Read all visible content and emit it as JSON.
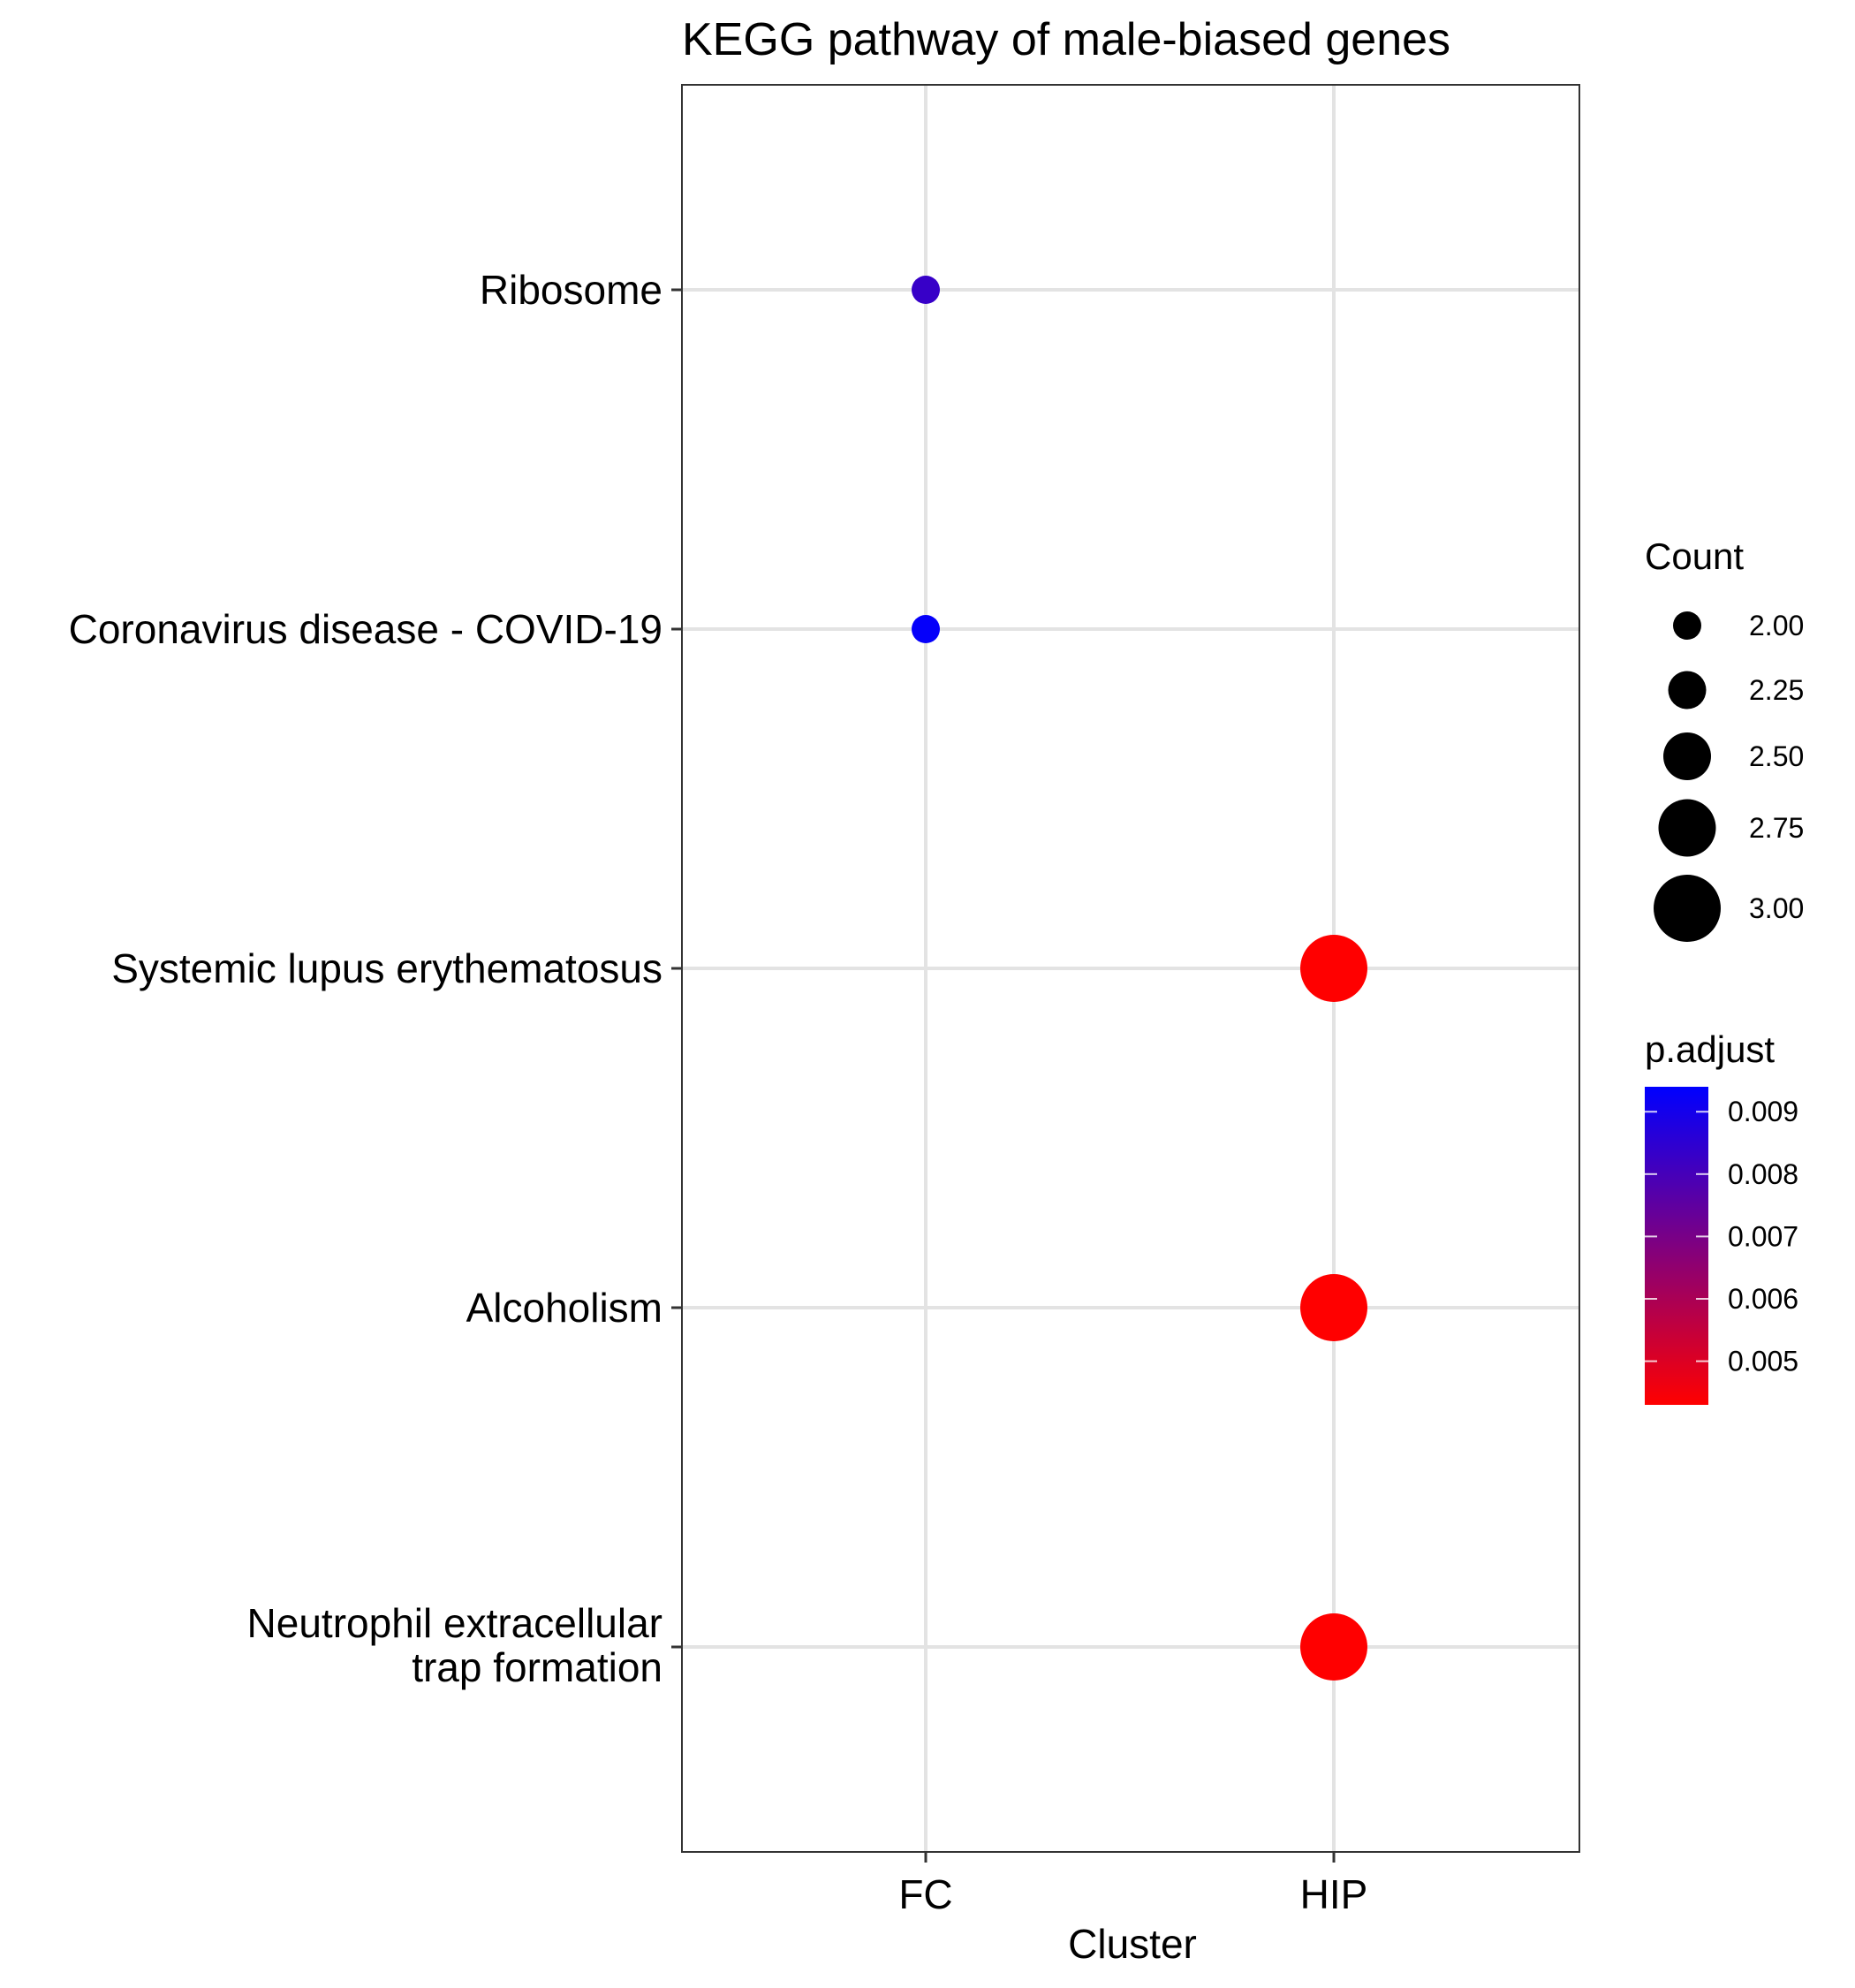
{
  "chart_data": {
    "type": "scatter",
    "title": "KEGG pathway of male-biased genes",
    "xlabel": "Cluster",
    "ylabel": "",
    "x_categories": [
      "FC",
      "HIP"
    ],
    "y_categories": [
      "Ribosome",
      "Coronavirus disease - COVID-19",
      "Systemic lupus erythematosus",
      "Alcoholism",
      "Neutrophil extracellular\ntrap formation"
    ],
    "points": [
      {
        "x": "FC",
        "y": "Ribosome",
        "count": 2,
        "p_adjust": 0.0083
      },
      {
        "x": "FC",
        "y": "Coronavirus disease - COVID-19",
        "count": 2,
        "p_adjust": 0.0093
      },
      {
        "x": "HIP",
        "y": "Systemic lupus erythematosus",
        "count": 3,
        "p_adjust": 0.0043
      },
      {
        "x": "HIP",
        "y": "Alcoholism",
        "count": 3,
        "p_adjust": 0.0043
      },
      {
        "x": "HIP",
        "y": "Neutrophil extracellular\ntrap formation",
        "count": 3,
        "p_adjust": 0.0043
      }
    ],
    "grid": true,
    "size_legend": {
      "title": "Count",
      "values": [
        2.0,
        2.25,
        2.5,
        2.75,
        3.0
      ],
      "labels": [
        "2.00",
        "2.25",
        "2.50",
        "2.75",
        "3.00"
      ],
      "range": [
        2,
        3
      ]
    },
    "color_legend": {
      "title": "p.adjust",
      "low_color": "#ff0000",
      "high_color": "#0000ff",
      "range": [
        0.0043,
        0.0094
      ],
      "ticks": [
        0.009,
        0.008,
        0.007,
        0.006,
        0.005
      ],
      "tick_labels": [
        "0.009",
        "0.008",
        "0.007",
        "0.006",
        "0.005"
      ]
    },
    "legend_position": "right"
  }
}
